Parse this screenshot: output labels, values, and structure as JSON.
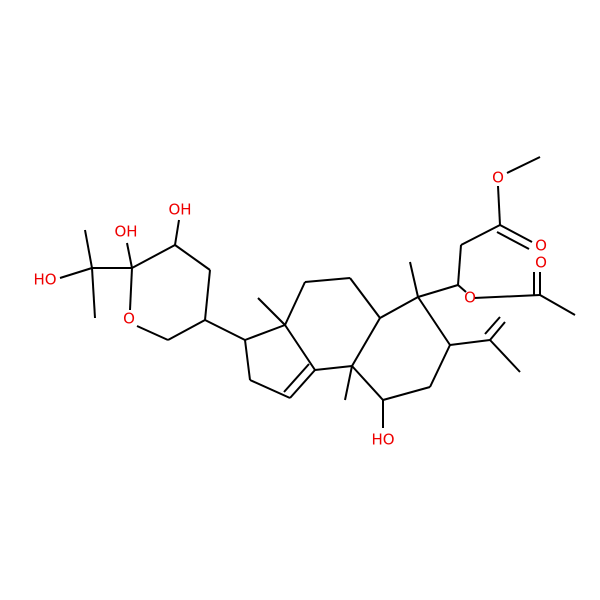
{
  "atoms": [
    {
      "label": "O"
    },
    {
      "label": "O"
    },
    {
      "label": "O"
    },
    {
      "label": "O"
    },
    {
      "label": "OH"
    },
    {
      "label": "OH"
    },
    {
      "label": "HO"
    },
    {
      "label": "O"
    },
    {
      "label": "HO"
    }
  ]
}
